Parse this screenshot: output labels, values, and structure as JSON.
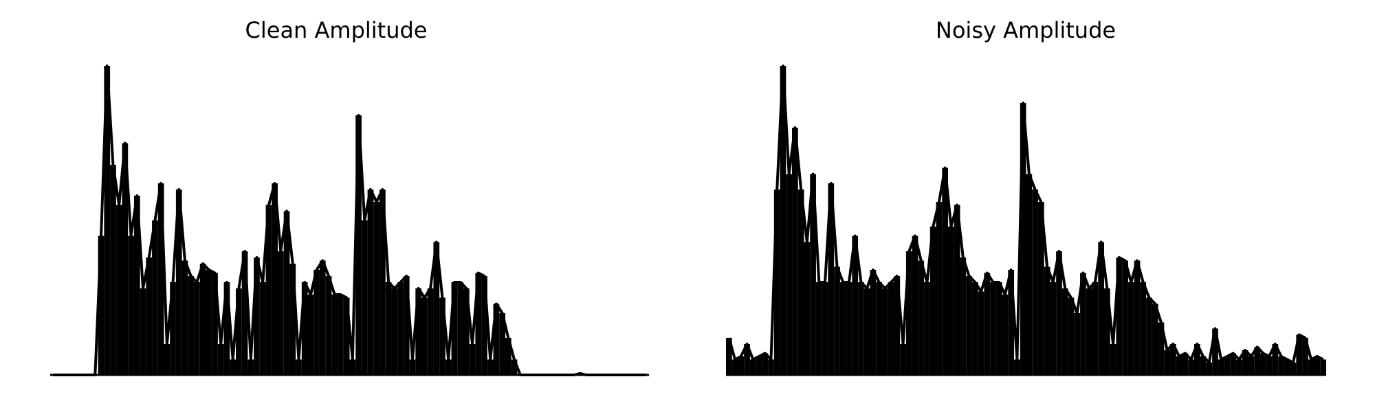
{
  "chart_data": [
    {
      "type": "line",
      "title": "Clean Amplitude",
      "color": "#000000",
      "ylim": [
        0,
        1
      ],
      "values": [
        0,
        0,
        0,
        0,
        0,
        0,
        0,
        0,
        0.45,
        1.0,
        0.68,
        0.55,
        0.75,
        0.45,
        0.58,
        0.28,
        0.38,
        0.5,
        0.62,
        0.1,
        0.3,
        0.6,
        0.37,
        0.32,
        0.3,
        0.36,
        0.34,
        0.33,
        0.1,
        0.3,
        0.05,
        0.28,
        0.4,
        0.05,
        0.38,
        0.3,
        0.55,
        0.62,
        0.4,
        0.53,
        0.36,
        0.05,
        0.3,
        0.26,
        0.34,
        0.37,
        0.32,
        0.26,
        0.26,
        0.25,
        0.05,
        0.84,
        0.5,
        0.6,
        0.56,
        0.6,
        0.3,
        0.28,
        0.3,
        0.32,
        0.05,
        0.28,
        0.25,
        0.28,
        0.43,
        0.25,
        0.05,
        0.3,
        0.3,
        0.28,
        0.1,
        0.33,
        0.32,
        0.05,
        0.23,
        0.2,
        0.12,
        0.05,
        0,
        0,
        0,
        0,
        0,
        0,
        0,
        0,
        0,
        0,
        0.005,
        0,
        0,
        0,
        0,
        0,
        0,
        0,
        0,
        0,
        0,
        0
      ]
    },
    {
      "type": "line",
      "title": "Noisy Amplitude",
      "color": "#000000",
      "ylim": [
        0,
        1
      ],
      "values": [
        0.12,
        0.05,
        0.06,
        0.1,
        0.05,
        0.06,
        0.07,
        0.05,
        0.6,
        1.0,
        0.65,
        0.8,
        0.6,
        0.43,
        0.65,
        0.3,
        0.3,
        0.62,
        0.35,
        0.3,
        0.3,
        0.45,
        0.3,
        0.28,
        0.34,
        0.3,
        0.28,
        0.3,
        0.32,
        0.1,
        0.4,
        0.45,
        0.37,
        0.3,
        0.48,
        0.56,
        0.67,
        0.48,
        0.55,
        0.38,
        0.32,
        0.3,
        0.27,
        0.33,
        0.3,
        0.3,
        0.26,
        0.34,
        0.05,
        0.88,
        0.65,
        0.6,
        0.56,
        0.35,
        0.3,
        0.4,
        0.28,
        0.25,
        0.2,
        0.33,
        0.28,
        0.3,
        0.43,
        0.28,
        0.1,
        0.38,
        0.37,
        0.3,
        0.37,
        0.3,
        0.25,
        0.23,
        0.17,
        0.08,
        0.1,
        0.06,
        0.07,
        0.05,
        0.1,
        0.06,
        0.04,
        0.15,
        0.05,
        0.06,
        0.07,
        0.05,
        0.08,
        0.06,
        0.09,
        0.07,
        0.06,
        0.1,
        0.06,
        0.05,
        0.04,
        0.13,
        0.12,
        0.05,
        0.06,
        0.05
      ]
    }
  ]
}
